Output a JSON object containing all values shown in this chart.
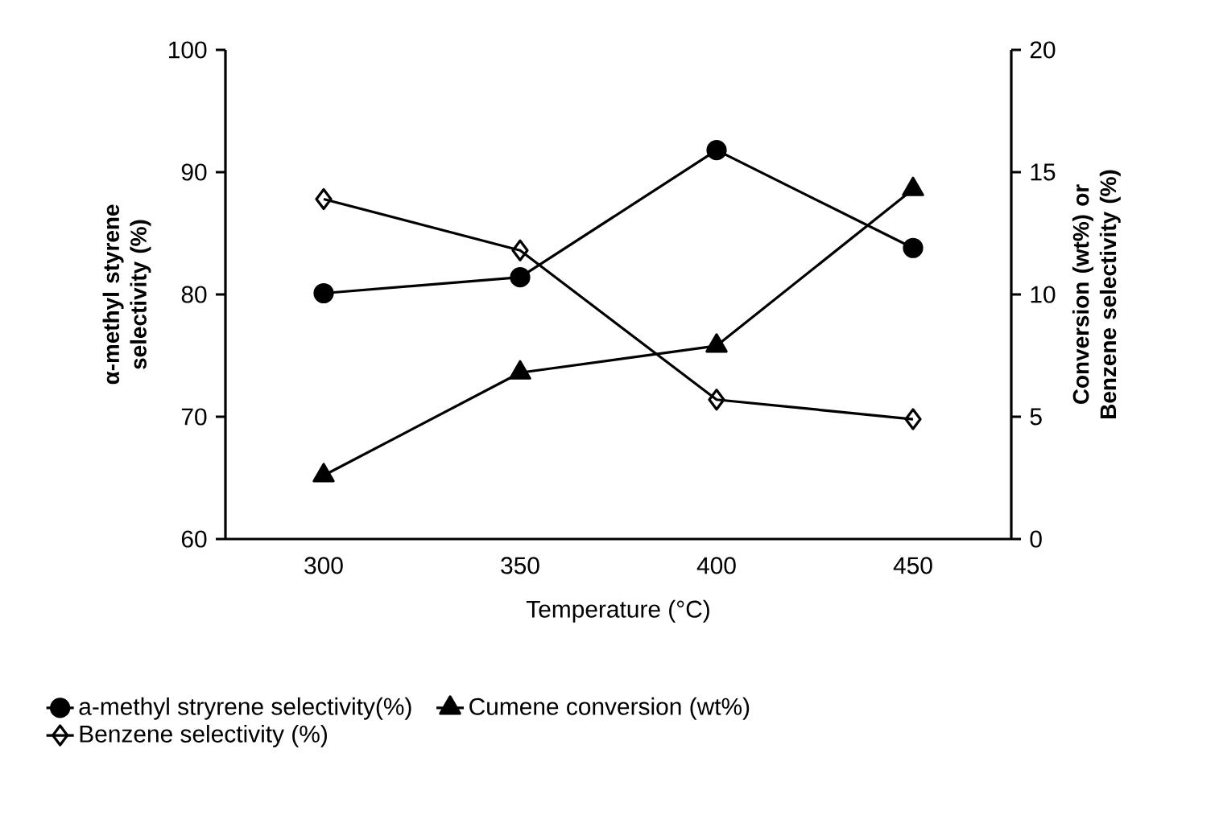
{
  "chart_data": {
    "type": "line",
    "categories": [
      "300",
      "350",
      "400",
      "450"
    ],
    "xlabel": "Temperature (°C)",
    "ylabel": "α-methyl styrene selectivity (%)",
    "y2label": "Conversion (wt%) or Benzene selectivity (%)",
    "ylim": [
      60,
      100
    ],
    "yticks": [
      60,
      70,
      80,
      90,
      100
    ],
    "y2lim": [
      0,
      20
    ],
    "y2ticks": [
      0,
      5,
      10,
      15,
      20
    ],
    "legend": "bottom",
    "series": [
      {
        "name": "a-methyl stryrene selectivity(%)",
        "color": "#000000",
        "marker": "circle",
        "values": [
          80.1,
          81.4,
          91.8,
          83.8
        ]
      },
      {
        "name": "Cumene conversion (wt%)",
        "color": "#000000",
        "marker": "triangle",
        "axis": "y2",
        "values": [
          2.6,
          6.8,
          7.9,
          14.3
        ]
      },
      {
        "name": "Benzene selectivity (%)",
        "color": "#000000",
        "marker": "diamond",
        "axis": "y2",
        "values": [
          13.9,
          11.8,
          5.7,
          4.9
        ]
      }
    ]
  }
}
